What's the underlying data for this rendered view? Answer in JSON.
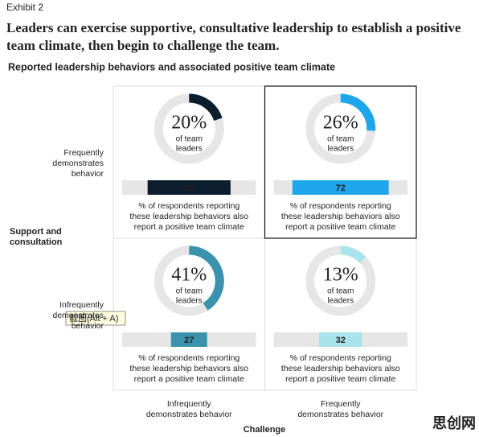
{
  "exhibit": "Exhibit 2",
  "title_lines": [
    "Leaders can exercise supportive, consultative leadership to establish a positive",
    "team climate, then begin to challenge the team."
  ],
  "subtitle": "Reported leadership behaviors and associated positive team climate",
  "tooltip": "截图(Alt + A)",
  "watermark": "思创网",
  "chart_data": {
    "type": "donut-matrix",
    "y_axis_label_lines": [
      "Support and",
      "consultation"
    ],
    "x_axis_label": "Challenge",
    "row_labels": [
      [
        "Frequently",
        "demonstrates",
        "behavior"
      ],
      [
        "Infrequently",
        "demonstrates",
        "behavior"
      ]
    ],
    "column_labels": [
      [
        "Infrequently",
        "demonstrates behavior"
      ],
      [
        "Frequently",
        "demonstrates behavior"
      ]
    ],
    "donut_caption_lines": [
      "of team",
      "leaders"
    ],
    "bar_caption_lines": [
      "% of respondents reporting",
      "these leadership behaviors also",
      "report a positive team climate"
    ],
    "bar_xlim": [
      0,
      100
    ],
    "cells": [
      [
        {
          "share": 20,
          "share_label": "20%",
          "positive_climate": 62,
          "color": "#0c1d2e",
          "bar_text_color": "#ffffff",
          "highlighted": false
        },
        {
          "share": 26,
          "share_label": "26%",
          "positive_climate": 72,
          "color": "#1ea6ea",
          "bar_text_color": "#0c1d2e",
          "highlighted": true
        }
      ],
      [
        {
          "share": 41,
          "share_label": "41%",
          "positive_climate": 27,
          "color": "#3a92ad",
          "bar_text_color": "#ffffff",
          "highlighted": false
        },
        {
          "share": 13,
          "share_label": "13%",
          "positive_climate": 32,
          "color": "#a9e4ec",
          "bar_text_color": "#0c1d2e",
          "highlighted": false
        }
      ]
    ]
  }
}
